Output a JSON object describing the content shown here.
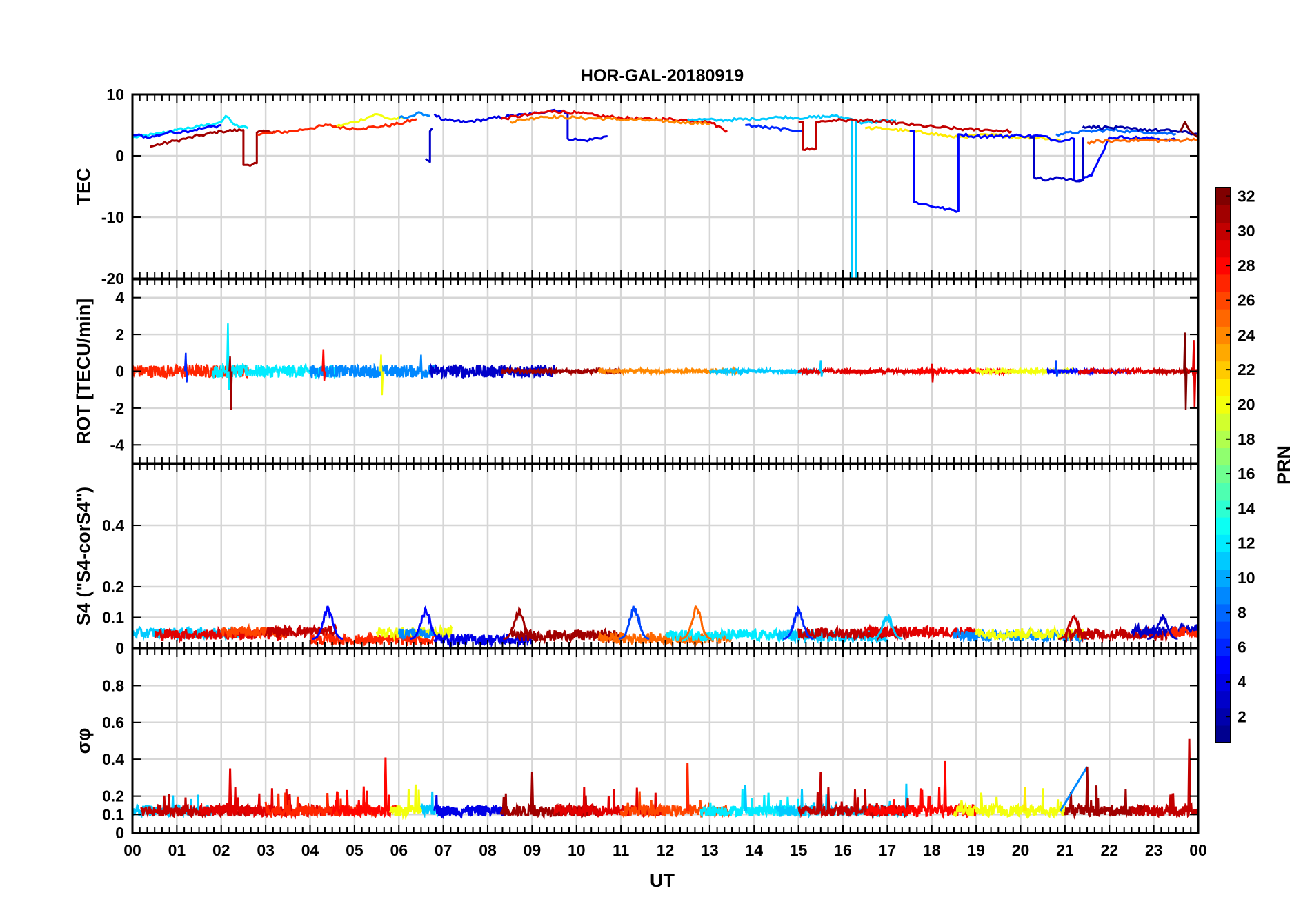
{
  "chart_data": {
    "type": "line",
    "title": "HOR-GAL-20180919",
    "xlabel": "UT",
    "x_ticks": [
      "00",
      "01",
      "02",
      "03",
      "04",
      "05",
      "06",
      "07",
      "08",
      "09",
      "10",
      "11",
      "12",
      "13",
      "14",
      "15",
      "16",
      "17",
      "18",
      "19",
      "20",
      "21",
      "22",
      "23",
      "00"
    ],
    "xlim": [
      0,
      24
    ],
    "colorbar": {
      "label": "PRN",
      "range": [
        1,
        32
      ],
      "ticks": [
        "2",
        "4",
        "6",
        "8",
        "10",
        "12",
        "14",
        "16",
        "18",
        "20",
        "22",
        "24",
        "26",
        "28",
        "30",
        "32"
      ],
      "colormap": [
        "#00008f",
        "#0000ff",
        "#0080ff",
        "#00ffff",
        "#80ff80",
        "#ffff00",
        "#ff8000",
        "#ff0000",
        "#800000"
      ]
    },
    "panels": [
      {
        "id": "tec",
        "ylabel": "TEC",
        "ylim": [
          -20,
          10
        ],
        "y_ticks": [
          "-20",
          "-10",
          "0",
          "10"
        ],
        "series": [
          {
            "prn": 12,
            "x": [
              0,
              0.5,
              1,
              1.5,
              2,
              2.1,
              2.3,
              2.6
            ],
            "y": [
              3,
              3.5,
              4.2,
              4.8,
              5.5,
              6.5,
              5,
              4.5
            ]
          },
          {
            "prn": 5,
            "x": [
              0,
              0.4,
              0.8,
              1.2,
              1.6,
              2.0
            ],
            "y": [
              3.5,
              3,
              3.8,
              4,
              4.5,
              5
            ]
          },
          {
            "prn": 31,
            "x": [
              0.4,
              1,
              1.5,
              2.0,
              2.5,
              2.5,
              2.55,
              2.8,
              2.8,
              3.2
            ],
            "y": [
              1.5,
              2.5,
              3.3,
              4,
              4.2,
              -1.5,
              -1.5,
              -1.2,
              3.8,
              4
            ]
          },
          {
            "prn": 27,
            "x": [
              2.8,
              3.2,
              3.6,
              4.0,
              4.4,
              4.8,
              5.2,
              5.6,
              6.0,
              6.4
            ],
            "y": [
              3.5,
              3.8,
              4,
              4.5,
              5,
              4.5,
              4.5,
              4.8,
              5.2,
              6
            ]
          },
          {
            "prn": 20,
            "x": [
              4.6,
              5,
              5.5,
              5.8,
              6.2
            ],
            "y": [
              4.8,
              5.5,
              6.8,
              6,
              6.2
            ]
          },
          {
            "prn": 9,
            "x": [
              6.0,
              6.3,
              6.5,
              6.7
            ],
            "y": [
              6.2,
              6.5,
              7,
              6.5
            ]
          },
          {
            "prn": 3,
            "x": [
              6.6,
              6.7,
              6.7,
              6.75
            ],
            "y": [
              -0.5,
              -1,
              4,
              4.5
            ]
          },
          {
            "prn": 4,
            "x": [
              6.8,
              7,
              7.5,
              8,
              8.5,
              9,
              9.5,
              9.8,
              9.8,
              10.2,
              10.7
            ],
            "y": [
              6.8,
              5.8,
              5.5,
              6,
              6.5,
              6.8,
              7.5,
              7,
              2.8,
              2.5,
              3.2
            ]
          },
          {
            "prn": 29,
            "x": [
              8.3,
              9,
              9.5,
              10,
              10.5,
              11,
              11.5,
              12,
              12.5,
              13,
              13.4
            ],
            "y": [
              6,
              6.8,
              7.3,
              7,
              6.5,
              6.2,
              6,
              6,
              5.8,
              5.5,
              4
            ]
          },
          {
            "prn": 24,
            "x": [
              8.5,
              9.2,
              10,
              10.8,
              11.6,
              12.4,
              13
            ],
            "y": [
              5.5,
              6.4,
              6.2,
              6,
              5.8,
              5.5,
              5.2
            ]
          },
          {
            "prn": 11,
            "x": [
              12.5,
              13.2,
              14,
              14.6,
              15.2,
              15.8,
              16.2,
              16.2,
              16.25,
              16.3,
              16.3,
              16.7,
              17.2
            ],
            "y": [
              6,
              5.8,
              6,
              6.3,
              6.2,
              6.5,
              6,
              -20,
              -20,
              -20,
              5.5,
              5.5,
              5.8
            ]
          },
          {
            "prn": 6,
            "x": [
              13.8,
              14.3,
              14.8,
              15.1
            ],
            "y": [
              5,
              4.6,
              4.2,
              4.2
            ]
          },
          {
            "prn": 30,
            "x": [
              15.0,
              15.1,
              15.1,
              15.4,
              15.4,
              15.8,
              16.4,
              17,
              17.6,
              18.2,
              18.8,
              19.3,
              19.8
            ],
            "y": [
              5.5,
              5.5,
              1,
              1.2,
              5.5,
              5.8,
              5.8,
              5.5,
              5,
              4.6,
              4.3,
              4.2,
              4
            ]
          },
          {
            "prn": 21,
            "x": [
              16.5,
              17,
              17.5,
              18,
              18.5,
              19,
              19.5,
              20,
              20.5,
              20.9
            ],
            "y": [
              4.5,
              4.4,
              4,
              3.7,
              3,
              3.3,
              3.4,
              3,
              3,
              2.5
            ]
          },
          {
            "prn": 5,
            "x": [
              17.5,
              17.6,
              17.6,
              18.2,
              18.6,
              18.6,
              19,
              19.5,
              20,
              20.5,
              20.8,
              21.2,
              21.2,
              21.6,
              22,
              22.4,
              23,
              23.5
            ],
            "y": [
              4,
              4,
              -7.5,
              -8.5,
              -9,
              3.5,
              3.2,
              3.2,
              3.3,
              3.2,
              2.5,
              2.8,
              -4,
              -3.2,
              3,
              3,
              2.8,
              2.6
            ]
          },
          {
            "prn": 3,
            "x": [
              20.2,
              20.3,
              20.3,
              20.6,
              20.8,
              21.2,
              21.4,
              21.4
            ],
            "y": [
              3,
              3,
              -3.5,
              -4,
              -3.5,
              -4,
              -4,
              3
            ]
          },
          {
            "prn": 8,
            "x": [
              20.8,
              21.5,
              22,
              22.5,
              23,
              23.5
            ],
            "y": [
              3.5,
              4,
              4.2,
              4,
              3.8,
              3.6
            ]
          },
          {
            "prn": 2,
            "x": [
              21.4,
              22,
              22.5,
              23,
              23.5,
              24
            ],
            "y": [
              4.8,
              4.6,
              4.4,
              4.2,
              4,
              3.5
            ]
          },
          {
            "prn": 25,
            "x": [
              21.5,
              22,
              22.5,
              23,
              23.5,
              24
            ],
            "y": [
              2.2,
              2.4,
              2.6,
              2.5,
              2.5,
              2.8
            ]
          },
          {
            "prn": 32,
            "x": [
              23.6,
              23.7,
              23.8,
              23.9,
              24
            ],
            "y": [
              4,
              5.5,
              4.2,
              3.5,
              3
            ]
          }
        ]
      },
      {
        "id": "rot",
        "ylabel": "ROT [TECU/min]",
        "ylim": [
          -5,
          5
        ],
        "y_ticks": [
          "-4",
          "-2",
          "0",
          "2",
          "4"
        ],
        "spikes": [
          {
            "prn": 12,
            "x": 2.15,
            "min": -1.0,
            "max": 2.6
          },
          {
            "prn": 31,
            "x": 2.2,
            "min": -2.1,
            "max": 0.8
          },
          {
            "prn": 6,
            "x": 1.2,
            "min": -0.6,
            "max": 1.0
          },
          {
            "prn": 28,
            "x": 4.3,
            "min": -0.5,
            "max": 1.2
          },
          {
            "prn": 20,
            "x": 5.6,
            "min": -1.3,
            "max": 0.9
          },
          {
            "prn": 9,
            "x": 6.5,
            "min": -0.4,
            "max": 0.9
          },
          {
            "prn": 11,
            "x": 15.5,
            "min": -0.3,
            "max": 0.6
          },
          {
            "prn": 29,
            "x": 18.0,
            "min": -0.6,
            "max": 0.4
          },
          {
            "prn": 7,
            "x": 20.8,
            "min": -0.3,
            "max": 0.6
          },
          {
            "prn": 32,
            "x": 23.7,
            "min": -2.1,
            "max": 2.1
          },
          {
            "prn": 29,
            "x": 23.9,
            "min": -2.0,
            "max": 1.7
          }
        ]
      },
      {
        "id": "s4",
        "ylabel": "S4 (\"S4-corS4\")",
        "ylim": [
          0,
          0.6
        ],
        "y_ticks": [
          "0",
          "0.1",
          "0.2",
          "0.4"
        ],
        "peaks": [
          {
            "prn": 5,
            "x": 4.4,
            "y": 0.14
          },
          {
            "prn": 5,
            "x": 6.6,
            "y": 0.13
          },
          {
            "prn": 31,
            "x": 8.7,
            "y": 0.13
          },
          {
            "prn": 7,
            "x": 11.3,
            "y": 0.14
          },
          {
            "prn": 25,
            "x": 12.7,
            "y": 0.14
          },
          {
            "prn": 6,
            "x": 15.0,
            "y": 0.13
          },
          {
            "prn": 11,
            "x": 17.0,
            "y": 0.11
          },
          {
            "prn": 30,
            "x": 21.2,
            "y": 0.11
          },
          {
            "prn": 3,
            "x": 23.2,
            "y": 0.11
          }
        ]
      },
      {
        "id": "sigma_phi",
        "ylabel": "σφ",
        "ylim": [
          0,
          1
        ],
        "y_ticks": [
          "0",
          "0.1",
          "0.2",
          "0.4",
          "0.6",
          "0.8"
        ],
        "spikes": [
          {
            "prn": 29,
            "x": 2.2,
            "y": 0.35
          },
          {
            "prn": 28,
            "x": 5.7,
            "y": 0.41
          },
          {
            "prn": 31,
            "x": 9.0,
            "y": 0.33
          },
          {
            "prn": 27,
            "x": 12.5,
            "y": 0.38
          },
          {
            "prn": 11,
            "x": 13.8,
            "y": 0.26
          },
          {
            "prn": 30,
            "x": 15.5,
            "y": 0.33
          },
          {
            "prn": 28,
            "x": 18.3,
            "y": 0.39
          },
          {
            "prn": 21,
            "x": 20.1,
            "y": 0.25
          },
          {
            "prn": 31,
            "x": 21.5,
            "y": 0.36
          },
          {
            "prn": 30,
            "x": 23.8,
            "y": 0.51
          }
        ]
      }
    ]
  }
}
